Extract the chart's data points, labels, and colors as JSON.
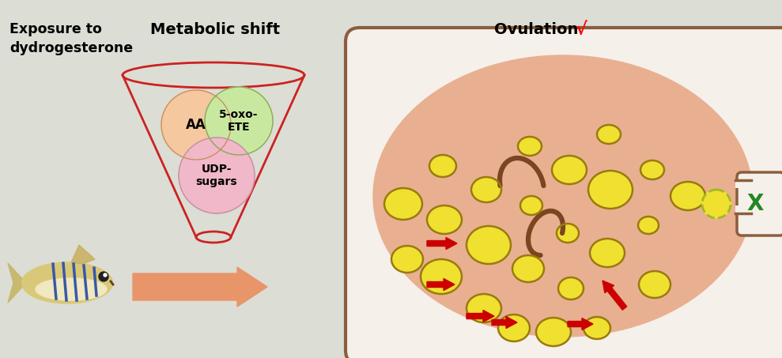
{
  "bg_color": "#dcddd5",
  "title_exposure_line1": "Exposure to",
  "title_exposure_line2": "dydrogesterone",
  "title_metabolic": "Metabolic shift",
  "title_ovulation": "Ovulation",
  "checkmark": "√",
  "label_AA": "AA",
  "label_5oxo": "5-oxo-\nETE",
  "label_UDP": "UDP-\nsugars",
  "color_AA": "#f5c8a0",
  "color_5oxo": "#c8e8a0",
  "color_UDP": "#f0b8c8",
  "color_funnel_border": "#cc2222",
  "color_arrow_main": "#e8956a",
  "color_ovary_border": "#8b5e3c",
  "color_ovary_outer_fill": "#f5f0ea",
  "color_ovary_inner_fill": "#e8b090",
  "color_egg_yellow": "#f0e030",
  "color_egg_border": "#9a7a10",
  "color_red_arrow": "#cc0000",
  "color_green_x": "#228822",
  "color_dashed_egg_border": "#a0b820",
  "color_dark_brown": "#6b3a1f",
  "color_squiggle": "#7a4520"
}
